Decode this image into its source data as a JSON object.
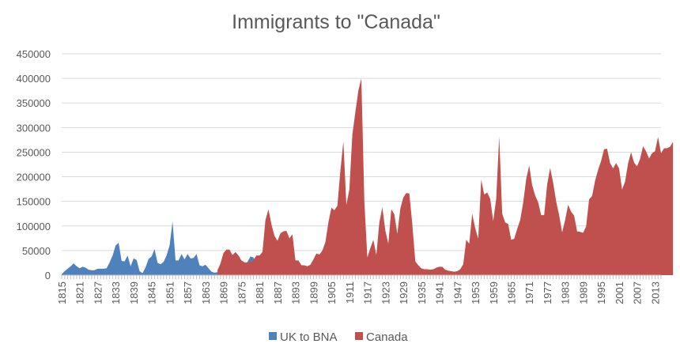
{
  "chart_data": {
    "type": "area",
    "title": "Immigrants to \"Canada\"",
    "xlabel": "",
    "ylabel": "",
    "ylim": [
      0,
      450000
    ],
    "y_ticks": [
      "0",
      "50000",
      "100000",
      "150000",
      "200000",
      "250000",
      "300000",
      "350000",
      "400000",
      "450000"
    ],
    "x_tick_labels": [
      "1815",
      "1821",
      "1827",
      "1833",
      "1839",
      "1845",
      "1851",
      "1857",
      "1863",
      "1869",
      "1875",
      "1881",
      "1887",
      "1893",
      "1899",
      "1905",
      "1911",
      "1917",
      "1923",
      "1929",
      "1935",
      "1941",
      "1947",
      "1953",
      "1959",
      "1965",
      "1971",
      "1977",
      "1983",
      "1989",
      "1995",
      "2001",
      "2007",
      "2013"
    ],
    "grid": true,
    "legend_position": "bottom",
    "series": [
      {
        "name": "UK to BNA",
        "color": "#4f81bd",
        "start_year": 1815,
        "values": [
          2000,
          8000,
          13000,
          18000,
          24000,
          18000,
          14000,
          17000,
          15000,
          11000,
          10000,
          10000,
          13000,
          13000,
          13000,
          14000,
          26000,
          40000,
          60000,
          66000,
          29000,
          28000,
          40000,
          18000,
          34000,
          31000,
          8000,
          4000,
          16000,
          33000,
          38000,
          53000,
          25000,
          22000,
          27000,
          40000,
          60000,
          109000,
          30000,
          30000,
          43000,
          32000,
          43000,
          34000,
          35000,
          43000,
          20000,
          18000,
          21000,
          14000,
          7000,
          5000,
          6000,
          11000,
          13000,
          17000,
          18000,
          13000,
          17000,
          14000,
          15000,
          19000,
          27000,
          38000,
          36000,
          20000
        ]
      },
      {
        "name": "Canada",
        "color": "#c0504d",
        "start_year": 1867,
        "values": [
          10000,
          24000,
          45000,
          52000,
          52000,
          41000,
          47000,
          40000,
          30000,
          26000,
          26000,
          27000,
          31000,
          40000,
          40000,
          47000,
          112000,
          134000,
          103000,
          80000,
          70000,
          85000,
          89000,
          90000,
          75000,
          83000,
          30000,
          30000,
          20000,
          20000,
          18000,
          21000,
          32000,
          44000,
          42000,
          50000,
          67000,
          107000,
          137000,
          132000,
          141000,
          212000,
          272000,
          143000,
          174000,
          286000,
          331000,
          375000,
          400000,
          150000,
          36000,
          55000,
          72000,
          41000,
          107000,
          138000,
          91000,
          64000,
          134000,
          124000,
          84000,
          135000,
          158000,
          167000,
          166000,
          104000,
          28000,
          20000,
          14000,
          12000,
          12000,
          11000,
          12000,
          15000,
          17000,
          17000,
          11000,
          9000,
          8000,
          7000,
          8000,
          12000,
          22000,
          72000,
          64000,
          125000,
          95000,
          74000,
          194000,
          164000,
          168000,
          155000,
          110000,
          155000,
          282000,
          125000,
          107000,
          104000,
          72000,
          74000,
          94000,
          112000,
          147000,
          195000,
          223000,
          183000,
          162000,
          148000,
          122000,
          122000,
          184000,
          218000,
          188000,
          150000,
          122000,
          87000,
          112000,
          143000,
          129000,
          121000,
          89000,
          88000,
          86000,
          99000,
          154000,
          161000,
          192000,
          214000,
          232000,
          256000,
          257000,
          228000,
          217000,
          228000,
          217000,
          174000,
          190000,
          227000,
          250000,
          229000,
          221000,
          236000,
          262000,
          252000,
          237000,
          248000,
          252000,
          281000,
          248000,
          258000,
          258000,
          261000,
          271000
        ]
      }
    ]
  }
}
